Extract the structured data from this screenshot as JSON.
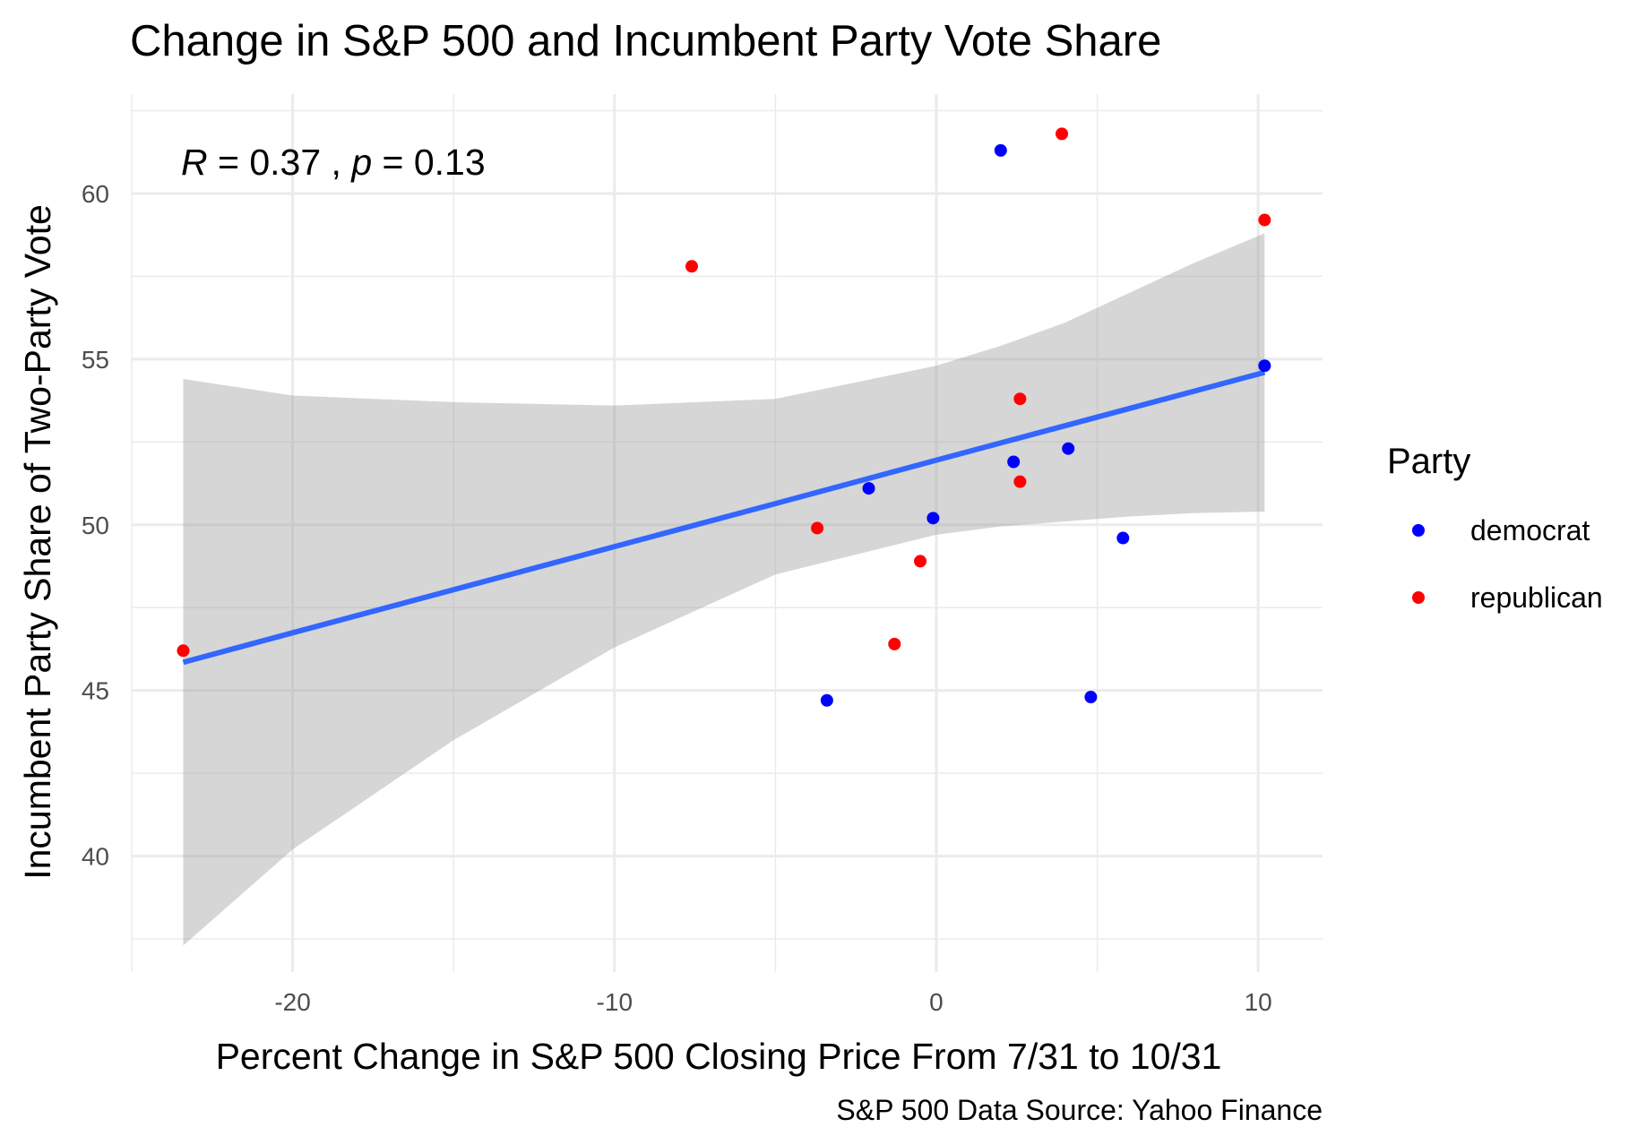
{
  "chart_data": {
    "type": "scatter",
    "title": "Change in S&P 500 and Incumbent Party Vote Share",
    "xlabel": "Percent Change in S&P 500 Closing Price From 7/31 to 10/31",
    "ylabel": "Incumbent Party Share of Two-Party Vote",
    "caption": "S&P 500 Data Source: Yahoo Finance",
    "xlim": [
      -25,
      12
    ],
    "ylim": [
      36.5,
      63
    ],
    "x_ticks": [
      -20,
      -10,
      0,
      10
    ],
    "y_ticks": [
      40,
      45,
      50,
      55,
      60
    ],
    "grid": true,
    "legend": {
      "title": "Party",
      "position": "right",
      "entries": [
        {
          "label": "democrat",
          "color": "#0000ff"
        },
        {
          "label": "republican",
          "color": "#ff0000"
        }
      ]
    },
    "annotation": {
      "r_symbol": "R",
      "r_text": " = 0.37 , ",
      "p_symbol": "p",
      "p_text": " = 0.13"
    },
    "series": [
      {
        "name": "democrat",
        "color": "#0000ff",
        "points": [
          {
            "x": 2.0,
            "y": 61.3
          },
          {
            "x": 10.2,
            "y": 54.8
          },
          {
            "x": 4.1,
            "y": 52.3
          },
          {
            "x": 2.4,
            "y": 51.9
          },
          {
            "x": -2.1,
            "y": 51.1
          },
          {
            "x": -0.1,
            "y": 50.2
          },
          {
            "x": 5.8,
            "y": 49.6
          },
          {
            "x": 4.8,
            "y": 44.8
          },
          {
            "x": -3.4,
            "y": 44.7
          }
        ]
      },
      {
        "name": "republican",
        "color": "#ff0000",
        "points": [
          {
            "x": 3.9,
            "y": 61.8
          },
          {
            "x": 10.2,
            "y": 59.2
          },
          {
            "x": -7.6,
            "y": 57.8
          },
          {
            "x": 2.6,
            "y": 53.8
          },
          {
            "x": 2.6,
            "y": 51.3
          },
          {
            "x": -3.7,
            "y": 49.9
          },
          {
            "x": -0.5,
            "y": 48.9
          },
          {
            "x": -1.3,
            "y": 46.4
          },
          {
            "x": -23.4,
            "y": 46.2
          }
        ]
      }
    ],
    "trend": {
      "color": "#3366ff",
      "band_color": "#999999",
      "x": [
        -23.4,
        -20,
        -15,
        -10,
        -5,
        0,
        2,
        4,
        6,
        8,
        10.2
      ],
      "fit": [
        45.85,
        46.74,
        48.04,
        49.34,
        50.64,
        51.95,
        52.47,
        52.99,
        53.51,
        54.03,
        54.6
      ],
      "lower": [
        37.3,
        40.2,
        43.5,
        46.3,
        48.5,
        49.7,
        49.95,
        50.1,
        50.25,
        50.35,
        50.4
      ],
      "upper": [
        54.4,
        53.9,
        53.7,
        53.6,
        53.8,
        54.8,
        55.4,
        56.1,
        57.0,
        57.9,
        58.8
      ]
    }
  }
}
